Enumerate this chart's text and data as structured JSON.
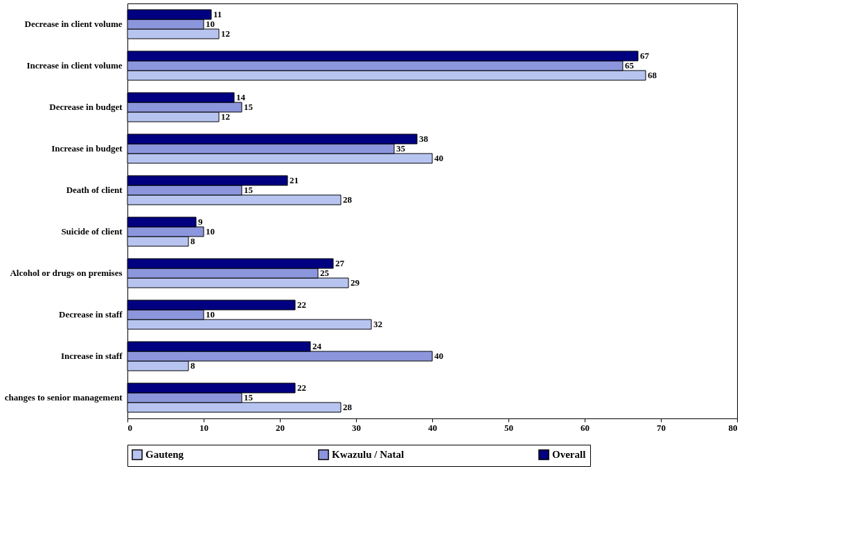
{
  "chart_data": {
    "type": "bar",
    "orientation": "horizontal",
    "categories": [
      "Decrease in client volume",
      "Increase in client volume",
      "Decrease in budget",
      "Increase in budget",
      "Death of client",
      "Suicide of client",
      "Alcohol or drugs on premises",
      "Decrease in staff",
      "Increase in staff",
      "changes to senior management"
    ],
    "series": [
      {
        "name": "Gauteng",
        "color": "#b8c4f0",
        "values": [
          12,
          68,
          12,
          40,
          28,
          8,
          29,
          32,
          8,
          28
        ]
      },
      {
        "name": "Kwazulu / Natal",
        "color": "#8c96dc",
        "values": [
          10,
          65,
          15,
          35,
          15,
          10,
          25,
          10,
          40,
          15
        ]
      },
      {
        "name": "Overall",
        "color": "#000080",
        "values": [
          11,
          67,
          14,
          38,
          21,
          9,
          27,
          22,
          24,
          22
        ]
      }
    ],
    "xlim": [
      0,
      80
    ],
    "xticks": [
      0,
      10,
      20,
      30,
      40,
      50,
      60,
      70,
      80
    ],
    "data_labels": true,
    "grid": false,
    "legend": "bottom"
  }
}
